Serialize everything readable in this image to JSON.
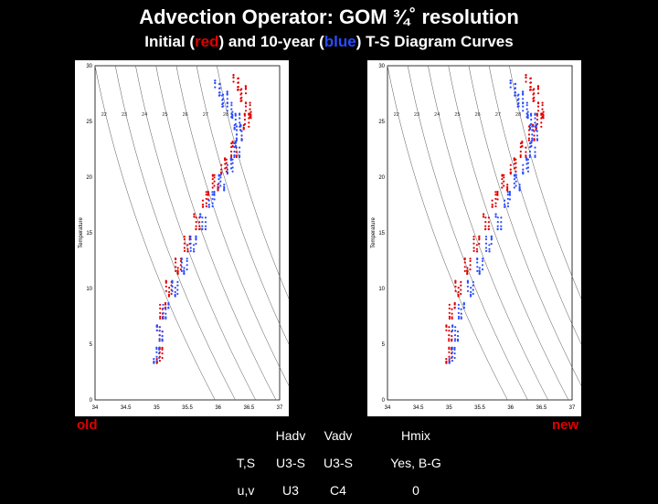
{
  "title": "Advection Operator: GOM ¾˚ resolution",
  "subtitle": {
    "prefix": "Initial (",
    "red_word": "red",
    "middle": ") and 10-year (",
    "blue_word": "blue",
    "suffix": ") T-S Diagram Curves"
  },
  "colors": {
    "initial": "#e00000",
    "final": "#2a4cff",
    "background": "#000000"
  },
  "labels": {
    "left": "old",
    "right": "new"
  },
  "axes": {
    "ylabel": "Temperature",
    "x_ticks": [
      "34",
      "34.5",
      "35",
      "35.5",
      "36",
      "36.5",
      "37"
    ],
    "y_ticks": [
      "0",
      "5",
      "10",
      "15",
      "20",
      "25",
      "30"
    ],
    "density_labels": [
      "22",
      "23",
      "24",
      "25",
      "26",
      "27",
      "28"
    ]
  },
  "table": {
    "header": [
      "",
      "Hadv",
      "Vadv",
      "Hmix"
    ],
    "rows": [
      [
        "T,S",
        "U3-S",
        "U3-S",
        "Yes, B-G"
      ],
      [
        "u,v",
        "U3",
        "C4",
        "0"
      ]
    ]
  },
  "chart_data": [
    {
      "type": "scatter",
      "title": "old",
      "xlabel": "",
      "ylabel": "Temperature",
      "xlim": [
        34,
        37
      ],
      "ylim": [
        0,
        30
      ],
      "series": [
        {
          "color": "#e00000",
          "x": [
            35.05,
            35.05,
            35.1,
            35.2,
            35.35,
            35.5,
            35.65,
            35.8,
            35.95,
            36.1,
            36.25,
            36.35,
            36.45,
            36.5,
            36.4,
            36.3
          ],
          "y": [
            4,
            6,
            8,
            10,
            12,
            14,
            16,
            18,
            19.5,
            21,
            22.5,
            24,
            25,
            26,
            27.5,
            28.5
          ]
        },
        {
          "color": "#2a4cff",
          "x": [
            35.0,
            35.05,
            35.15,
            35.3,
            35.45,
            35.6,
            35.75,
            35.9,
            36.05,
            36.2,
            36.3,
            36.35,
            36.3,
            36.2,
            36.1,
            36.0
          ],
          "y": [
            4,
            6,
            8,
            10,
            12,
            14,
            16,
            18,
            19.5,
            21,
            22.5,
            24,
            25,
            26,
            27,
            28
          ]
        }
      ]
    },
    {
      "type": "scatter",
      "title": "new",
      "xlabel": "",
      "ylabel": "Temperature",
      "xlim": [
        34,
        37
      ],
      "ylim": [
        0,
        30
      ],
      "series": [
        {
          "color": "#e00000",
          "x": [
            35.0,
            35.0,
            35.05,
            35.15,
            35.3,
            35.45,
            35.6,
            35.75,
            35.9,
            36.05,
            36.2,
            36.35,
            36.45,
            36.5,
            36.4,
            36.3
          ],
          "y": [
            4,
            6,
            8,
            10,
            12,
            14,
            16,
            18,
            19.5,
            21,
            22.5,
            24,
            25,
            26,
            27.5,
            28.5
          ]
        },
        {
          "color": "#2a4cff",
          "x": [
            35.05,
            35.1,
            35.2,
            35.35,
            35.5,
            35.65,
            35.8,
            35.95,
            36.1,
            36.25,
            36.35,
            36.4,
            36.35,
            36.25,
            36.15,
            36.05
          ],
          "y": [
            4,
            6,
            8,
            10,
            12,
            14,
            16,
            18,
            19.5,
            21,
            22.5,
            24,
            25,
            26,
            27,
            28
          ]
        }
      ]
    }
  ]
}
